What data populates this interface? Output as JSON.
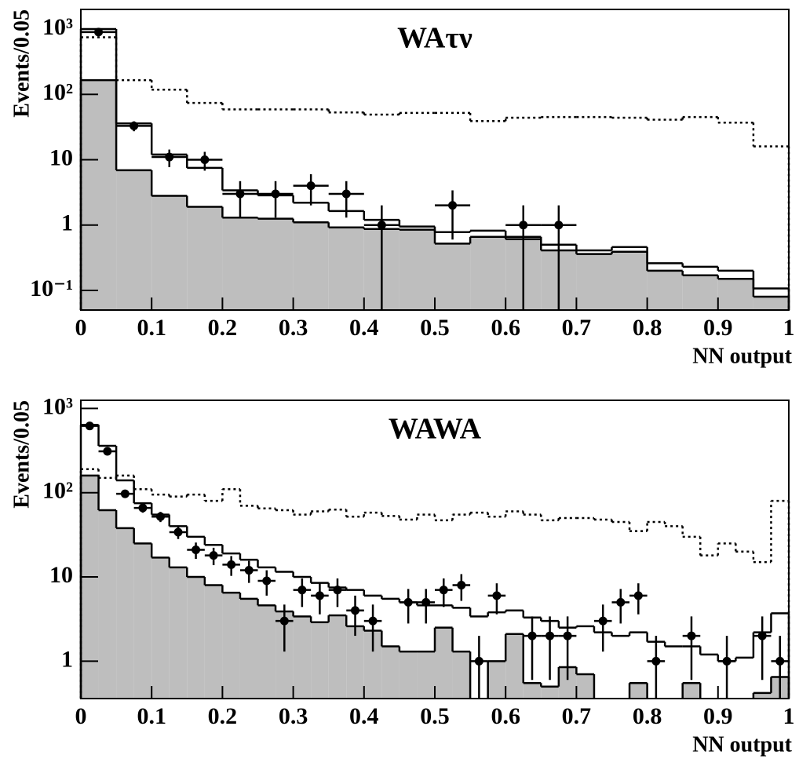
{
  "chart_data": [
    {
      "type": "histogram",
      "title": "WAτν",
      "ylabel": "Events/0.05",
      "xlabel": "NN output",
      "log_y": true,
      "xlim": [
        0,
        1
      ],
      "ylim": [
        0.05,
        2000
      ],
      "xticks": [
        0,
        0.1,
        0.2,
        0.3,
        0.4,
        0.5,
        0.6,
        0.7,
        0.8,
        0.9,
        1
      ],
      "yticks": [
        {
          "value": 1000,
          "label": "10³"
        },
        {
          "value": 100,
          "label": "10²"
        },
        10,
        1,
        {
          "value": 0.1,
          "label": "10⁻¹"
        }
      ],
      "bins": [
        0,
        0.05,
        0.1,
        0.15,
        0.2,
        0.25,
        0.3,
        0.35,
        0.4,
        0.45,
        0.5,
        0.55,
        0.6,
        0.65,
        0.7,
        0.75,
        0.8,
        0.85,
        0.9,
        0.95,
        1
      ],
      "series": [
        {
          "style": "filled",
          "color": "#bebebe",
          "values": [
            165,
            6.9,
            2.8,
            1.9,
            1.3,
            1.25,
            1.1,
            0.92,
            0.87,
            0.85,
            0.52,
            0.66,
            0.61,
            0.41,
            0.36,
            0.39,
            0.2,
            0.17,
            0.15,
            0.08
          ]
        },
        {
          "style": "solid",
          "color": "#000000",
          "values": [
            1000,
            36,
            12,
            7.5,
            3.4,
            2.85,
            2.2,
            1.64,
            1.2,
            0.95,
            0.78,
            0.82,
            0.66,
            0.5,
            0.41,
            0.46,
            0.26,
            0.23,
            0.2,
            0.107
          ]
        },
        {
          "style": "dotted",
          "color": "#000000",
          "values": [
            750,
            165,
            118,
            74,
            59,
            59,
            59,
            53,
            49,
            52,
            52,
            39,
            44,
            45,
            45,
            44,
            41,
            45,
            37,
            16
          ]
        }
      ],
      "points": {
        "color": "#000000",
        "x": [
          0.025,
          0.075,
          0.125,
          0.175,
          0.225,
          0.275,
          0.325,
          0.375,
          0.425,
          0.525,
          0.625,
          0.675
        ],
        "values": [
          900,
          33,
          11,
          10,
          3,
          3,
          4,
          3,
          1,
          2,
          1,
          1
        ],
        "errors": [
          30,
          5.7,
          3.3,
          3.2,
          1.7,
          1.7,
          2,
          1.7,
          1,
          1.4,
          1,
          1
        ]
      }
    },
    {
      "type": "histogram",
      "title": "WAWA",
      "ylabel": "Events/0.05",
      "xlabel": "NN output",
      "log_y": true,
      "xlim": [
        0,
        1
      ],
      "ylim": [
        0.36,
        1250
      ],
      "xticks": [
        0,
        0.1,
        0.2,
        0.3,
        0.4,
        0.5,
        0.6,
        0.7,
        0.8,
        0.9,
        1
      ],
      "yticks": [
        {
          "value": 1000,
          "label": "10³"
        },
        {
          "value": 100,
          "label": "10²"
        },
        10,
        1
      ],
      "bins": [
        0,
        0.025,
        0.05,
        0.075,
        0.1,
        0.125,
        0.15,
        0.175,
        0.2,
        0.225,
        0.25,
        0.275,
        0.3,
        0.325,
        0.35,
        0.375,
        0.4,
        0.425,
        0.45,
        0.475,
        0.5,
        0.525,
        0.55,
        0.575,
        0.6,
        0.625,
        0.65,
        0.675,
        0.7,
        0.725,
        0.75,
        0.775,
        0.8,
        0.825,
        0.85,
        0.875,
        0.9,
        0.925,
        0.95,
        0.975,
        1
      ],
      "series": [
        {
          "style": "filled",
          "color": "#bebebe",
          "values": [
            160,
            62,
            38,
            25,
            17,
            13,
            10,
            8,
            6.5,
            5.5,
            4.6,
            3.9,
            3.4,
            2.9,
            3.5,
            2.6,
            2.3,
            1.5,
            1.3,
            1.3,
            2.5,
            1.3,
            null,
            1.0,
            2.1,
            0.55,
            0.5,
            0.85,
            0.7,
            null,
            null,
            0.55,
            null,
            null,
            0.55,
            null,
            null,
            null,
            0.42,
            0.65
          ]
        },
        {
          "style": "solid",
          "color": "#000000",
          "values": [
            640,
            360,
            140,
            75,
            55,
            40,
            30,
            24,
            19,
            16,
            13,
            11.5,
            10,
            8.5,
            7.5,
            7,
            6,
            5.5,
            5,
            4.6,
            4.6,
            4.3,
            3.4,
            3.8,
            4.0,
            3.3,
            3.0,
            2.5,
            2.6,
            2.2,
            2.0,
            2.2,
            1.7,
            1.5,
            1.5,
            1.2,
            1.0,
            1.1,
            2.2,
            3.7
          ]
        },
        {
          "style": "dotted",
          "color": "#000000",
          "values": [
            190,
            150,
            160,
            110,
            95,
            90,
            95,
            80,
            110,
            70,
            65,
            62,
            55,
            60,
            63,
            52,
            58,
            53,
            48,
            55,
            47,
            55,
            58,
            52,
            60,
            55,
            47,
            50,
            50,
            48,
            45,
            35,
            45,
            40,
            30,
            18,
            25,
            20,
            15,
            80
          ]
        }
      ],
      "points": {
        "color": "#000000",
        "x": [
          0.0125,
          0.0375,
          0.0625,
          0.0875,
          0.1125,
          0.1375,
          0.1625,
          0.1875,
          0.2125,
          0.2375,
          0.2625,
          0.2875,
          0.3125,
          0.3375,
          0.3625,
          0.3875,
          0.4125,
          0.4625,
          0.4875,
          0.5125,
          0.5375,
          0.5625,
          0.5875,
          0.6375,
          0.6625,
          0.6875,
          0.7375,
          0.7625,
          0.7875,
          0.8125,
          0.8625,
          0.9125,
          0.9625,
          0.9875
        ],
        "values": [
          620,
          310,
          97,
          66,
          52,
          34,
          21,
          18,
          14,
          12,
          9,
          3,
          7,
          6,
          7,
          4,
          3,
          5,
          5,
          7,
          8,
          1,
          6,
          2,
          2,
          2,
          3,
          5,
          6,
          1,
          2,
          1,
          2,
          1
        ],
        "errors": [
          24.9,
          17.6,
          9.8,
          8.1,
          7.2,
          5.8,
          4.6,
          4.2,
          3.7,
          3.5,
          3,
          1.7,
          2.6,
          2.4,
          2.6,
          2,
          1.7,
          2.2,
          2.2,
          2.6,
          2.8,
          1,
          2.4,
          1.4,
          1.4,
          1.4,
          1.7,
          2.2,
          2.4,
          1,
          1.4,
          1,
          1.4,
          1
        ]
      }
    }
  ]
}
